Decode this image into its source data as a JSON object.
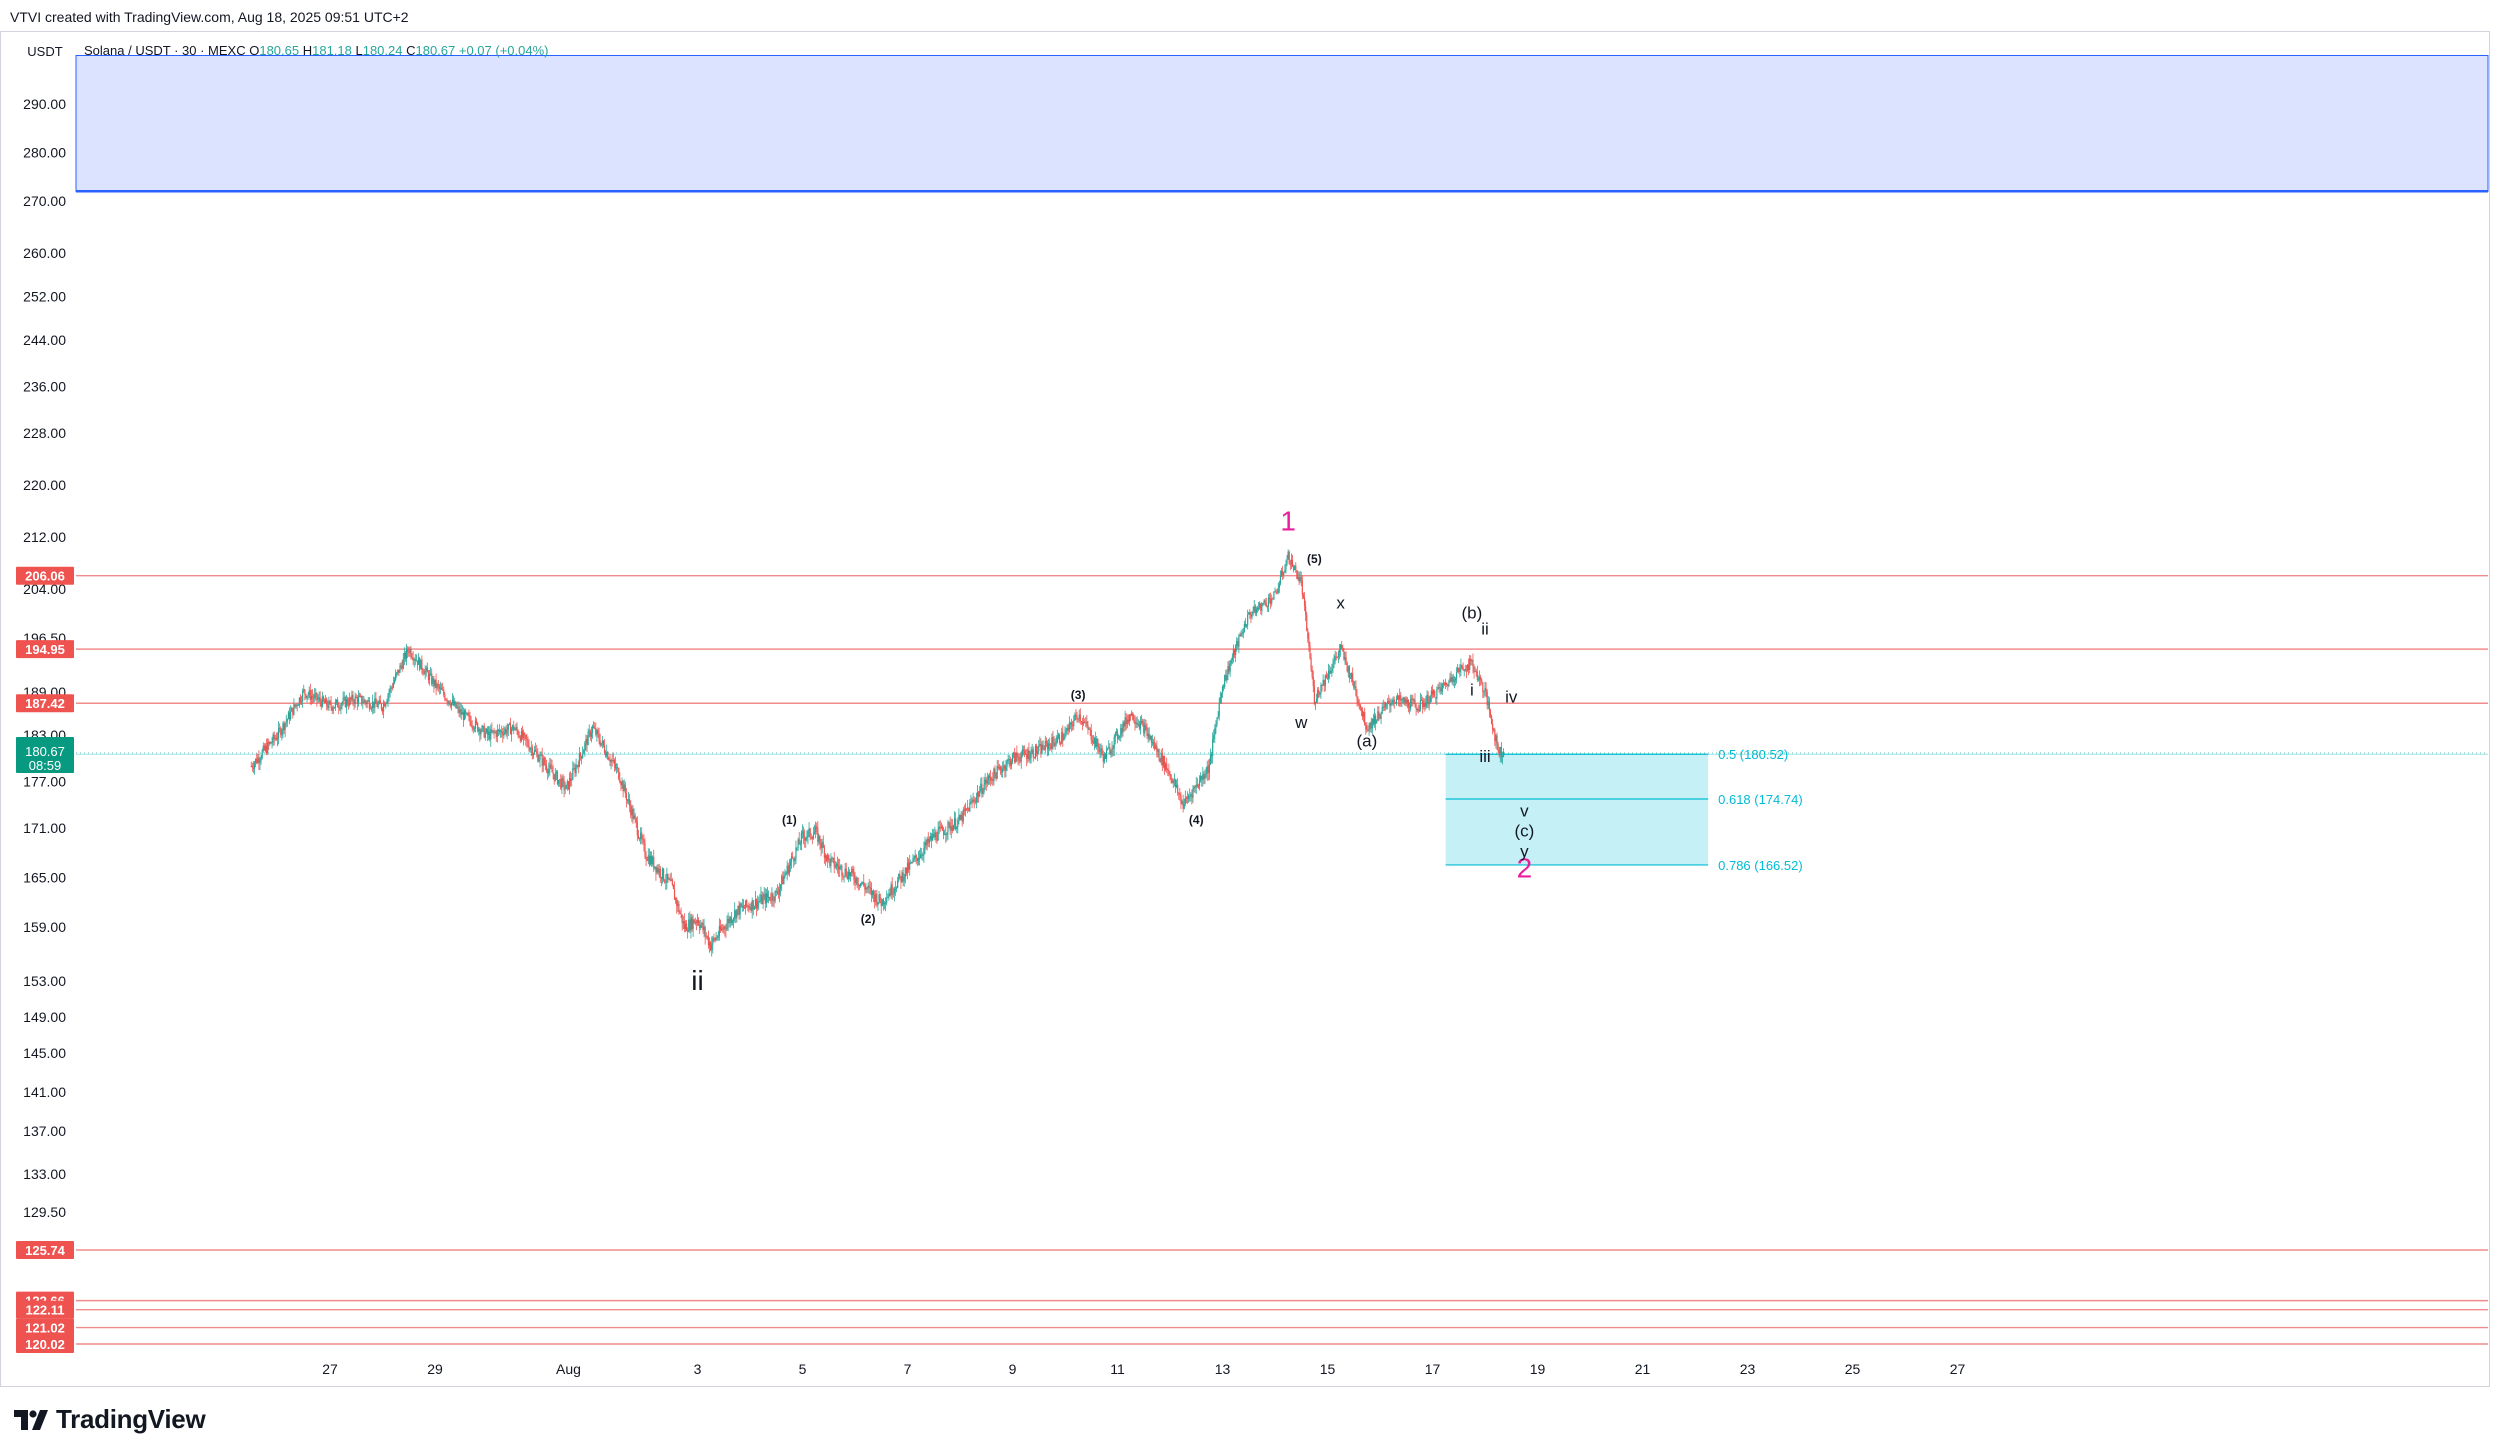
{
  "header": {
    "text": "VTVI created with TradingView.com, Aug 18, 2025 09:51 UTC+2"
  },
  "legend": {
    "symbol": "Solana / USDT · 30 · MEXC",
    "o_label": "O",
    "o_value": "180.65",
    "h_label": "H",
    "h_value": "181.18",
    "l_label": "L",
    "l_value": "180.24",
    "c_label": "C",
    "c_value": "180.67",
    "change": "+0.07 (+0.04%)",
    "currency": "USDT"
  },
  "footer": {
    "brand": "TradingView"
  },
  "colors": {
    "candle_up": "#26a69a",
    "candle_down": "#ef5350",
    "wave_primary": "#e91e9c",
    "resistance_line": "#f28b8b",
    "supply_zone": "#dbe3ff",
    "supply_zone_edge": "#2962ff",
    "fib_zone": "#b2ebf2",
    "fib_text": "#00bcd4",
    "price_tag": "#089981"
  },
  "chart_data": {
    "type": "candlestick",
    "symbol": "Solana / USDT",
    "timeframe": "30",
    "exchange": "MEXC",
    "ylim": [
      117,
      300
    ],
    "y_ticks": [
      "290.00",
      "280.00",
      "270.00",
      "260.00",
      "252.00",
      "244.00",
      "236.00",
      "228.00",
      "220.00",
      "212.00",
      "204.00",
      "196.50",
      "189.00",
      "183.00",
      "177.00",
      "171.00",
      "165.00",
      "159.00",
      "153.00",
      "149.00",
      "145.00",
      "141.00",
      "137.00",
      "133.00",
      "129.50"
    ],
    "x_ticks": [
      "27",
      "29",
      "Aug",
      "3",
      "5",
      "7",
      "9",
      "11",
      "13",
      "15",
      "17",
      "19",
      "21",
      "23",
      "25",
      "27"
    ],
    "current_price": "180.67",
    "countdown": "08:59",
    "price_path": [
      [
        "Jul 25 12:00",
        179
      ],
      [
        "Jul 26 00:00",
        183
      ],
      [
        "Jul 26 12:00",
        189
      ],
      [
        "Jul 27 00:00",
        187
      ],
      [
        "Jul 27 12:00",
        188
      ],
      [
        "Jul 28 00:00",
        187
      ],
      [
        "Jul 28 12:00",
        195
      ],
      [
        "Jul 29 00:00",
        190
      ],
      [
        "Jul 29 12:00",
        186
      ],
      [
        "Jul 30 00:00",
        183
      ],
      [
        "Jul 30 12:00",
        184
      ],
      [
        "Jul 31 00:00",
        180
      ],
      [
        "Jul 31 12:00",
        176
      ],
      [
        "Aug 1 00:00",
        184
      ],
      [
        "Aug 1 12:00",
        178
      ],
      [
        "Aug 2 00:00",
        168
      ],
      [
        "Aug 2 12:00",
        164
      ],
      [
        "Aug 2 18:00",
        159
      ],
      [
        "Aug 3 00:00",
        160
      ],
      [
        "Aug 3 06:00",
        157
      ],
      [
        "Aug 3 18:00",
        161
      ],
      [
        "Aug 4 12:00",
        163
      ],
      [
        "Aug 5 00:00",
        170
      ],
      [
        "Aug 5 06:00",
        170.5
      ],
      [
        "Aug 5 12:00",
        167
      ],
      [
        "Aug 6 00:00",
        165
      ],
      [
        "Aug 6 12:00",
        162
      ],
      [
        "Aug 7 00:00",
        166
      ],
      [
        "Aug 7 12:00",
        170
      ],
      [
        "Aug 8 00:00",
        172
      ],
      [
        "Aug 8 12:00",
        177
      ],
      [
        "Aug 9 00:00",
        180
      ],
      [
        "Aug 9 12:00",
        181
      ],
      [
        "Aug 10 00:00",
        183
      ],
      [
        "Aug 10 06:00",
        186
      ],
      [
        "Aug 10 18:00",
        180
      ],
      [
        "Aug 11 06:00",
        186
      ],
      [
        "Aug 11 12:00",
        184
      ],
      [
        "Aug 12 00:00",
        178
      ],
      [
        "Aug 12 06:00",
        174
      ],
      [
        "Aug 12 18:00",
        179
      ],
      [
        "Aug 13 00:00",
        190
      ],
      [
        "Aug 13 12:00",
        200
      ],
      [
        "Aug 14 00:00",
        203
      ],
      [
        "Aug 14 06:00",
        209
      ],
      [
        "Aug 14 12:00",
        205
      ],
      [
        "Aug 14 18:00",
        188
      ],
      [
        "Aug 15 06:00",
        195
      ],
      [
        "Aug 15 12:00",
        190
      ],
      [
        "Aug 15 18:00",
        184
      ],
      [
        "Aug 16 06:00",
        188
      ],
      [
        "Aug 16 18:00",
        187
      ],
      [
        "Aug 17 06:00",
        190
      ],
      [
        "Aug 17 12:00",
        192
      ],
      [
        "Aug 17 18:00",
        193
      ],
      [
        "Aug 18 00:00",
        189
      ],
      [
        "Aug 18 06:00",
        181
      ],
      [
        "Aug 18 09:00",
        180.67
      ]
    ],
    "horizontal_levels": [
      {
        "price": 206.06,
        "label": "206.06"
      },
      {
        "price": 194.95,
        "label": "194.95"
      },
      {
        "price": 187.42,
        "label": "187.42"
      },
      {
        "price": 125.74,
        "label": "125.74"
      },
      {
        "price": 122.66,
        "label": "122.66"
      },
      {
        "price": 122.11,
        "label": "122.11"
      },
      {
        "price": 121.02,
        "label": "121.02"
      },
      {
        "price": 120.02,
        "label": "120.02"
      }
    ],
    "supply_zone": {
      "from": 272,
      "to": 300
    },
    "fib_zone": {
      "x_start": "Aug 17 06:00",
      "x_end": "Aug 22 06:00",
      "levels": [
        {
          "ratio": "0.5",
          "price": 180.52,
          "label": "0.5 (180.52)"
        },
        {
          "ratio": "0.618",
          "price": 174.74,
          "label": "0.618 (174.74)"
        },
        {
          "ratio": "0.786",
          "price": 166.52,
          "label": "0.786 (166.52)"
        }
      ]
    },
    "wave_labels": [
      {
        "text": "1",
        "x": "Aug 14 06:00",
        "price": 213,
        "style": "primary"
      },
      {
        "text": "2",
        "x": "Aug 18 18:00",
        "price": 165,
        "style": "primary"
      },
      {
        "text": "ii",
        "x": "Aug 3 00:00",
        "price": 152,
        "style": "large"
      },
      {
        "text": "(1)",
        "x": "Aug 4 18:00",
        "price": 171.5,
        "style": "small-bold"
      },
      {
        "text": "(2)",
        "x": "Aug 6 06:00",
        "price": 159.5,
        "style": "small-bold"
      },
      {
        "text": "(3)",
        "x": "Aug 10 06:00",
        "price": 188,
        "style": "small-bold"
      },
      {
        "text": "(4)",
        "x": "Aug 12 12:00",
        "price": 171.5,
        "style": "small-bold"
      },
      {
        "text": "(5)",
        "x": "Aug 14 18:00",
        "price": 208,
        "style": "small-bold"
      },
      {
        "text": "w",
        "x": "Aug 14 12:00",
        "price": 184,
        "style": "medium"
      },
      {
        "text": "x",
        "x": "Aug 15 06:00",
        "price": 201,
        "style": "medium"
      },
      {
        "text": "(a)",
        "x": "Aug 15 18:00",
        "price": 181.5,
        "style": "medium"
      },
      {
        "text": "(b)",
        "x": "Aug 17 18:00",
        "price": 199.5,
        "style": "medium"
      },
      {
        "text": "ii",
        "x": "Aug 18 00:00",
        "price": 197,
        "style": "medium"
      },
      {
        "text": "i",
        "x": "Aug 17 18:00",
        "price": 188.5,
        "style": "medium"
      },
      {
        "text": "iv",
        "x": "Aug 18 12:00",
        "price": 187.5,
        "style": "medium"
      },
      {
        "text": "iii",
        "x": "Aug 18 00:00",
        "price": 179.5,
        "style": "medium"
      },
      {
        "text": "v",
        "x": "Aug 18 18:00",
        "price": 172.5,
        "style": "medium"
      },
      {
        "text": "(c)",
        "x": "Aug 18 18:00",
        "price": 170,
        "style": "medium"
      },
      {
        "text": "y",
        "x": "Aug 18 18:00",
        "price": 167.5,
        "style": "medium"
      }
    ]
  }
}
